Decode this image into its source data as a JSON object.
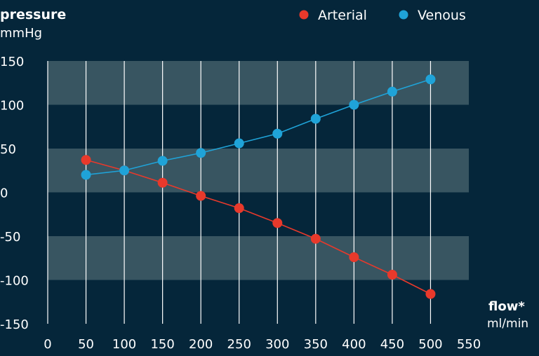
{
  "chart_data": {
    "type": "line",
    "ylabel": "pressure",
    "yunit": "mmHg",
    "xlabel": "flow*",
    "xunit": "ml/min",
    "xlim": [
      0,
      550
    ],
    "ylim": [
      -150,
      150
    ],
    "xticks": [
      0,
      50,
      100,
      150,
      200,
      250,
      300,
      350,
      400,
      450,
      500,
      550
    ],
    "yticks": [
      150,
      100,
      50,
      0,
      -50,
      -100,
      -150
    ],
    "x": [
      50,
      100,
      150,
      200,
      250,
      300,
      350,
      400,
      450,
      500
    ],
    "series": [
      {
        "name": "Arterial",
        "color": "#e8392b",
        "values": [
          37,
          25,
          11,
          -4,
          -18,
          -35,
          -53,
          -74,
          -94,
          -116
        ]
      },
      {
        "name": "Venous",
        "color": "#1fa3d8",
        "values": [
          20,
          25,
          36,
          45,
          56,
          67,
          84,
          100,
          115,
          129
        ]
      }
    ],
    "legend_position": "top-right",
    "grid": true,
    "colors": {
      "background": "#05263a",
      "band": "#385561",
      "gridline": "#ffffff",
      "text": "#ffffff"
    }
  }
}
